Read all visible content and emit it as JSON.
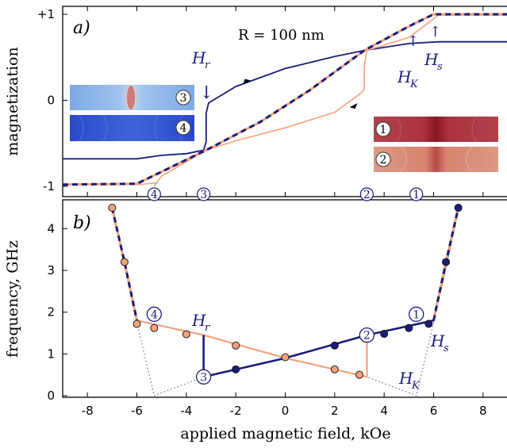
{
  "colors": {
    "navy": "#1a1d7a",
    "salmon": "#f5a27a",
    "salmon_dark": "#e8865a",
    "dotted": "#555555"
  },
  "chart_data": [
    {
      "type": "line",
      "panel_label": "a)",
      "annotation": "R = 100 nm",
      "ylabel": "magnetization",
      "xlim": [
        -9,
        9
      ],
      "ylim": [
        -1,
        1
      ],
      "yticks": [
        "-1",
        "0",
        "+1"
      ],
      "series": [
        {
          "id": "descending",
          "color": "#1a1d7a",
          "x": [
            9,
            6.2,
            5,
            3.2,
            2,
            0,
            -2,
            -3.1,
            -3.2,
            -3.2,
            -3.3,
            -4,
            -5,
            -6,
            -9
          ],
          "y": [
            0.68,
            0.68,
            0.66,
            0.58,
            0.51,
            0.37,
            0.16,
            -0.03,
            -0.15,
            -0.48,
            -0.58,
            -0.62,
            -0.64,
            -0.68,
            -0.68
          ]
        },
        {
          "id": "ascending",
          "color": "#f5a27a",
          "x": [
            -9,
            -6,
            -5.2,
            -5.3,
            -5,
            -3.2,
            -2,
            0,
            2,
            3,
            3.2,
            3.2,
            3.3,
            5,
            6.2,
            9
          ],
          "y": [
            -0.98,
            -0.98,
            -0.96,
            -1.0,
            -0.88,
            -0.58,
            -0.47,
            -0.32,
            -0.14,
            0.07,
            0.13,
            0.4,
            0.58,
            0.73,
            0.99,
            0.99
          ]
        },
        {
          "id": "saturated-branch",
          "color": "#1a1d7a",
          "dash_color": "#f5a27a",
          "x": [
            -9,
            -6,
            -5,
            -3.2,
            -1,
            1,
            3.2,
            5,
            6,
            9
          ],
          "y": [
            -0.98,
            -0.97,
            -0.83,
            -0.58,
            -0.25,
            0.12,
            0.58,
            0.86,
            1.0,
            1.0
          ]
        }
      ],
      "labels": {
        "Hr": "H",
        "Hr_sub": "r",
        "Hs": "H",
        "Hs_sub": "s",
        "HK": "H",
        "HK_sub": "K",
        "Hr_arrow": "↓",
        "small_arrow": "↑"
      },
      "markers": [
        {
          "label": "4",
          "x": -5.3
        },
        {
          "label": "3",
          "x": -3.3
        },
        {
          "label": "2",
          "x": 3.3
        },
        {
          "label": "1",
          "x": 5.3
        }
      ],
      "insets": [
        {
          "label": "3",
          "palette": "light-blue"
        },
        {
          "label": "4",
          "palette": "blue"
        },
        {
          "label": "1",
          "palette": "dark-red"
        },
        {
          "label": "2",
          "palette": "salmon"
        }
      ]
    },
    {
      "type": "line",
      "panel_label": "b)",
      "xlabel": "applied magnetic field, kOe",
      "ylabel": "frequency, GHz",
      "xlim": [
        -9,
        9
      ],
      "ylim": [
        0,
        4.5
      ],
      "xticks": [
        "-8",
        "-6",
        "-4",
        "-2",
        "0",
        "2",
        "4",
        "6",
        "8"
      ],
      "yticks": [
        "0",
        "1",
        "2",
        "3",
        "4"
      ],
      "series": [
        {
          "id": "salmon-branch",
          "color": "#f5a27a",
          "x": [
            -7,
            -6,
            -3.3,
            0,
            3.3,
            3.3
          ],
          "y": [
            4.5,
            1.8,
            1.45,
            0.9,
            0.45,
            1.45
          ]
        },
        {
          "id": "navy-branch",
          "color": "#1a1d7a",
          "x": [
            -3.3,
            -3.3,
            0,
            3.3,
            6,
            7
          ],
          "y": [
            1.45,
            0.45,
            0.9,
            1.45,
            1.8,
            4.5
          ]
        },
        {
          "id": "outer-left",
          "color": "#1a1d7a",
          "dash_color": "#f5a27a",
          "x": [
            -7,
            -6.5,
            -6
          ],
          "y": [
            4.5,
            3.2,
            1.8
          ]
        },
        {
          "id": "outer-right",
          "color": "#1a1d7a",
          "dash_color": "#f5a27a",
          "x": [
            6,
            6.5,
            7
          ],
          "y": [
            1.8,
            3.2,
            4.5
          ]
        },
        {
          "id": "hk-left",
          "color": "#555555",
          "dotted": true,
          "x": [
            -6,
            -5.3,
            -3.3
          ],
          "y": [
            1.75,
            0,
            0.45
          ]
        },
        {
          "id": "hk-right",
          "color": "#555555",
          "dotted": true,
          "x": [
            6,
            5.3,
            3.3
          ],
          "y": [
            1.75,
            0,
            0.45
          ]
        }
      ],
      "points_salmon": {
        "x": [
          -7,
          -6.5,
          -6,
          -5.3,
          -4,
          -2,
          0,
          2,
          3
        ],
        "y": [
          4.5,
          3.2,
          1.72,
          1.62,
          1.47,
          1.2,
          0.92,
          0.63,
          0.5
        ]
      },
      "points_navy": {
        "x": [
          -2,
          2,
          4,
          5,
          5.8,
          6.5,
          7
        ],
        "y": [
          0.63,
          1.2,
          1.48,
          1.62,
          1.72,
          3.2,
          4.5
        ]
      },
      "markers": [
        {
          "label": "4",
          "x": -5.3,
          "y": 1.95
        },
        {
          "label": "3",
          "x": -3.3,
          "y": 0.45
        },
        {
          "label": "2",
          "x": 3.3,
          "y": 1.45
        },
        {
          "label": "1",
          "x": 5.3,
          "y": 1.95
        }
      ],
      "labels": {
        "Hr": "H",
        "Hr_sub": "r",
        "Hs": "H",
        "Hs_sub": "s",
        "HK": "H",
        "HK_sub": "K"
      }
    }
  ]
}
